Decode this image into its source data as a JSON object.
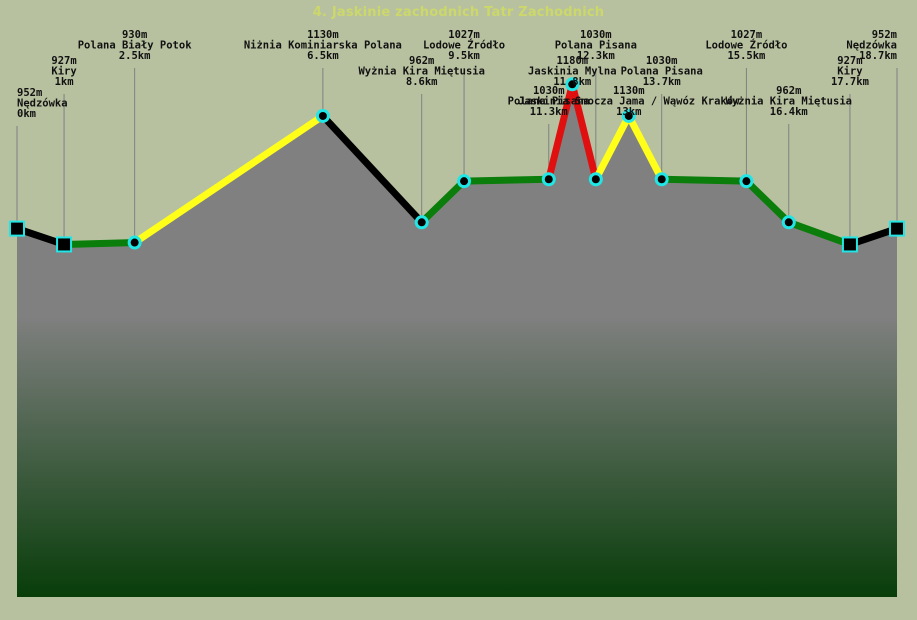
{
  "page": {
    "title": "4. Jaskinie zachodnich Tatr Zachodnich"
  },
  "chart_data": {
    "type": "area",
    "title": "",
    "xlabel": "",
    "ylabel": "",
    "xlim": [
      0,
      18.7
    ],
    "ylim": [
      370,
      1250
    ],
    "grid": false,
    "legend": "none",
    "colors": {
      "fill_top": "#808080",
      "fill_bottom": "#083d0a",
      "black": "#000000",
      "green": "#0a7d0a",
      "yellow": "#ffff1a",
      "red": "#e01010",
      "marker_ring": "#22e6e6",
      "drop_line": "#808080"
    },
    "points": [
      {
        "name": "Nędzówka",
        "elev_label": "952m",
        "dist_label": "0km",
        "x": 0,
        "y": 952,
        "marker": "square"
      },
      {
        "name": "Kiry",
        "elev_label": "927m",
        "dist_label": "1km",
        "x": 1.0,
        "y": 927,
        "marker": "square"
      },
      {
        "name": "Polana Biały Potok",
        "elev_label": "930m",
        "dist_label": "2.5km",
        "x": 2.5,
        "y": 930,
        "marker": "circle"
      },
      {
        "name": "Niżnia Kominiarska Polana",
        "elev_label": "1130m",
        "dist_label": "6.5km",
        "x": 6.5,
        "y": 1130,
        "marker": "circle"
      },
      {
        "name": "Wyżnia Kira Miętusia",
        "elev_label": "962m",
        "dist_label": "8.6km",
        "x": 8.6,
        "y": 962,
        "marker": "circle"
      },
      {
        "name": "Lodowe Źródło",
        "elev_label": "1027m",
        "dist_label": "9.5km",
        "x": 9.5,
        "y": 1027,
        "marker": "circle"
      },
      {
        "name": "Polana Pisana",
        "elev_label": "1030m",
        "dist_label": "11.3km",
        "x": 11.3,
        "y": 1030,
        "marker": "circle"
      },
      {
        "name": "Jaskinia Mylna",
        "elev_label": "1180m",
        "dist_label": "11.8km",
        "x": 11.8,
        "y": 1180,
        "marker": "circle"
      },
      {
        "name": "Polana Pisana",
        "elev_label": "1030m",
        "dist_label": "12.3km",
        "x": 12.3,
        "y": 1030,
        "marker": "circle"
      },
      {
        "name": "Jaskinia Smocza Jama / Wąwóz Kraków",
        "elev_label": "1130m",
        "dist_label": "13km",
        "x": 13.0,
        "y": 1130,
        "marker": "circle"
      },
      {
        "name": "Polana Pisana",
        "elev_label": "1030m",
        "dist_label": "13.7km",
        "x": 13.7,
        "y": 1030,
        "marker": "circle"
      },
      {
        "name": "Lodowe Źródło",
        "elev_label": "1027m",
        "dist_label": "15.5km",
        "x": 15.5,
        "y": 1027,
        "marker": "circle"
      },
      {
        "name": "Wyżnia Kira Miętusia",
        "elev_label": "962m",
        "dist_label": "16.4km",
        "x": 16.4,
        "y": 962,
        "marker": "circle"
      },
      {
        "name": "Kiry",
        "elev_label": "927m",
        "dist_label": "17.7km",
        "x": 17.7,
        "y": 927,
        "marker": "square"
      },
      {
        "name": "Nędzówka",
        "elev_label": "952m",
        "dist_label": "18.7km",
        "x": 18.7,
        "y": 952,
        "marker": "square"
      }
    ],
    "segment_colors": [
      "black",
      "green",
      "yellow",
      "black",
      "green",
      "green",
      "red",
      "red",
      "yellow",
      "yellow",
      "green",
      "green",
      "green",
      "black"
    ]
  }
}
